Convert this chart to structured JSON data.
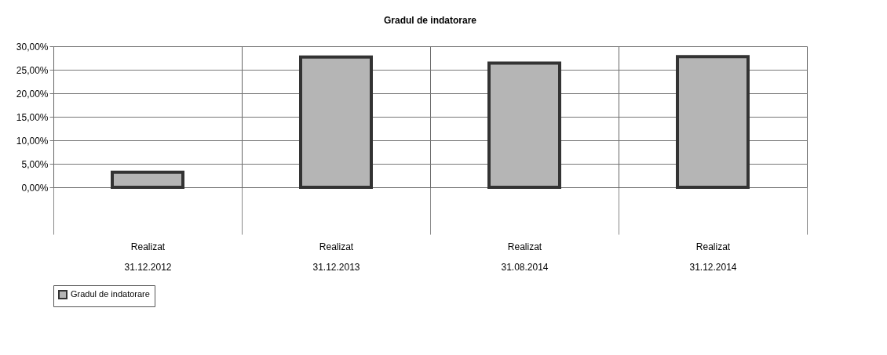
{
  "chart_data": {
    "type": "bar",
    "title": "Gradul de indatorare",
    "categories": [
      "Realizat\n31.12.2012",
      "Realizat\n31.12.2013",
      "Realizat\n31.08.2014",
      "Realizat\n31.12.2014"
    ],
    "series": [
      {
        "name": "Gradul de indatorare",
        "color": "#b5b5b5",
        "values": [
          3.2,
          27.7,
          26.4,
          27.8
        ]
      }
    ],
    "ylim": [
      0,
      30
    ],
    "yticks": [
      {
        "value": 0,
        "label": "0,00%"
      },
      {
        "value": 5,
        "label": "5,00%"
      },
      {
        "value": 10,
        "label": "10,00%"
      },
      {
        "value": 15,
        "label": "15,00%"
      },
      {
        "value": 20,
        "label": "20,00%"
      },
      {
        "value": 25,
        "label": "25,00%"
      },
      {
        "value": 30,
        "label": "30,00%"
      }
    ],
    "grid": true,
    "legend": "bottom"
  }
}
